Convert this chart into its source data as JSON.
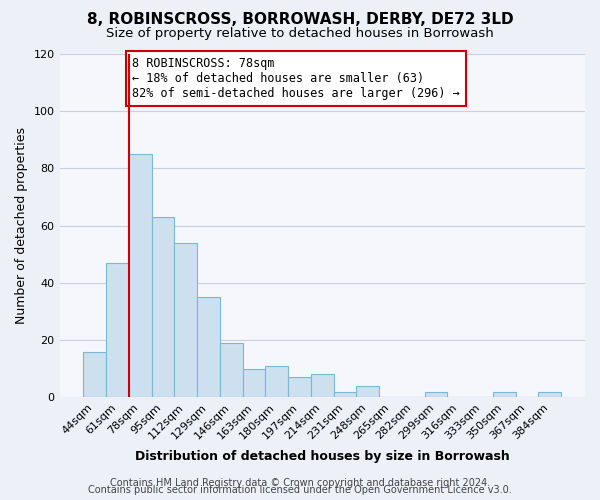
{
  "title": "8, ROBINSCROSS, BORROWASH, DERBY, DE72 3LD",
  "subtitle": "Size of property relative to detached houses in Borrowash",
  "xlabel": "Distribution of detached houses by size in Borrowash",
  "ylabel": "Number of detached properties",
  "bar_labels": [
    "44sqm",
    "61sqm",
    "78sqm",
    "95sqm",
    "112sqm",
    "129sqm",
    "146sqm",
    "163sqm",
    "180sqm",
    "197sqm",
    "214sqm",
    "231sqm",
    "248sqm",
    "265sqm",
    "282sqm",
    "299sqm",
    "316sqm",
    "333sqm",
    "350sqm",
    "367sqm",
    "384sqm"
  ],
  "bar_values": [
    16,
    47,
    85,
    63,
    54,
    35,
    19,
    10,
    11,
    7,
    8,
    2,
    4,
    0,
    0,
    2,
    0,
    0,
    2,
    0,
    2
  ],
  "bar_color": "#cce0f0",
  "bar_edge_color": "#7ab8d8",
  "highlight_index": 2,
  "highlight_line_color": "#cc0000",
  "annotation_text": "8 ROBINSCROSS: 78sqm\n← 18% of detached houses are smaller (63)\n82% of semi-detached houses are larger (296) →",
  "annotation_box_color": "white",
  "annotation_box_edge_color": "#cc0000",
  "ylim": [
    0,
    120
  ],
  "yticks": [
    0,
    20,
    40,
    60,
    80,
    100,
    120
  ],
  "footer_line1": "Contains HM Land Registry data © Crown copyright and database right 2024.",
  "footer_line2": "Contains public sector information licensed under the Open Government Licence v3.0.",
  "background_color": "#eef0f8",
  "plot_background_color": "#f5f7fc",
  "grid_color": "#c8cfe8",
  "title_fontsize": 11,
  "subtitle_fontsize": 9.5,
  "axis_label_fontsize": 9,
  "tick_fontsize": 8,
  "annotation_fontsize": 8.5,
  "footer_fontsize": 7
}
